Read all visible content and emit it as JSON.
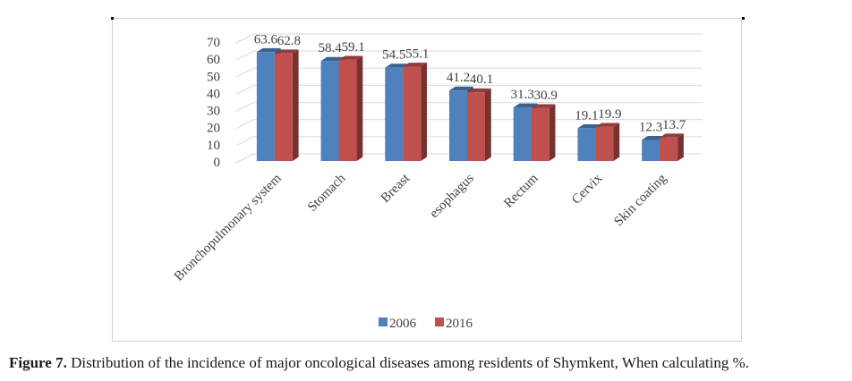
{
  "chart_data": {
    "type": "bar",
    "style": "3d-clustered-column",
    "title": "",
    "xlabel": "",
    "ylabel": "",
    "ylim": [
      0,
      70
    ],
    "yticks": [
      0,
      10,
      20,
      30,
      40,
      50,
      60,
      70
    ],
    "grid": true,
    "legend": "bottom",
    "categories": [
      "Bronchopulmonary system",
      "Stomach",
      "Breast",
      "esophagus",
      "Rectum",
      "Cervix",
      "Skin coating"
    ],
    "series": [
      {
        "name": "2006",
        "color": "#4f81bd",
        "values": [
          63.6,
          58.4,
          54.5,
          41.2,
          31.3,
          19.1,
          12.3
        ]
      },
      {
        "name": "2016",
        "color": "#c0504d",
        "values": [
          62.8,
          59.1,
          55.1,
          40.1,
          30.9,
          19.9,
          13.7
        ]
      }
    ]
  },
  "caption": {
    "label": "Figure 7.",
    "text": " Distribution of the incidence of major oncological diseases among residents of Shymkent, When calculating %."
  }
}
